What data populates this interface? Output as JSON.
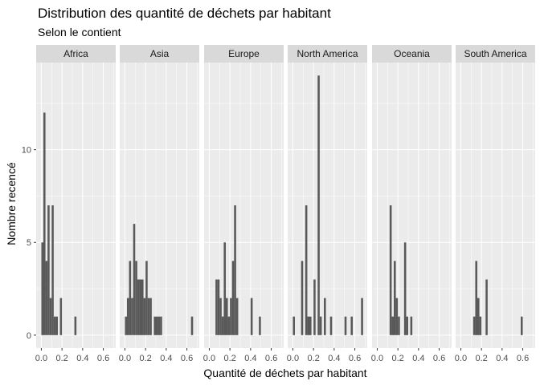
{
  "chart_data": {
    "type": "bar",
    "subtype": "faceted-histogram",
    "title": "Distribution des quantité de déchets par habitant",
    "subtitle": "Selon le contient",
    "xlabel": "Quantité de déchets par habitant",
    "ylabel": "Nombre recencé",
    "xlim": [
      -0.05,
      0.72
    ],
    "ylim": [
      -0.7,
      14.7
    ],
    "x_ticks": [
      0.0,
      0.2,
      0.4,
      0.6
    ],
    "x_tick_labels": [
      "0.0",
      "0.2",
      "0.4",
      "0.6"
    ],
    "y_ticks": [
      0,
      5,
      10
    ],
    "y_tick_labels": [
      "0",
      "5",
      "10"
    ],
    "bin_width": 0.02,
    "grid": true,
    "colors": {
      "bar": "#595959",
      "panel_bg": "#ebebeb",
      "grid": "#ffffff",
      "strip_bg": "#d9d9d9"
    },
    "facets": [
      {
        "name": "Africa",
        "bins": [
          {
            "x": 0.01,
            "count": 5
          },
          {
            "x": 0.03,
            "count": 12
          },
          {
            "x": 0.05,
            "count": 4
          },
          {
            "x": 0.07,
            "count": 7
          },
          {
            "x": 0.09,
            "count": 2
          },
          {
            "x": 0.11,
            "count": 7
          },
          {
            "x": 0.13,
            "count": 1
          },
          {
            "x": 0.15,
            "count": 1
          },
          {
            "x": 0.19,
            "count": 2
          },
          {
            "x": 0.33,
            "count": 1
          }
        ]
      },
      {
        "name": "Asia",
        "bins": [
          {
            "x": 0.01,
            "count": 1
          },
          {
            "x": 0.03,
            "count": 2
          },
          {
            "x": 0.05,
            "count": 4
          },
          {
            "x": 0.07,
            "count": 2
          },
          {
            "x": 0.09,
            "count": 6
          },
          {
            "x": 0.11,
            "count": 4
          },
          {
            "x": 0.13,
            "count": 3
          },
          {
            "x": 0.15,
            "count": 3
          },
          {
            "x": 0.17,
            "count": 3
          },
          {
            "x": 0.19,
            "count": 2
          },
          {
            "x": 0.21,
            "count": 4
          },
          {
            "x": 0.23,
            "count": 2
          },
          {
            "x": 0.25,
            "count": 2
          },
          {
            "x": 0.29,
            "count": 1
          },
          {
            "x": 0.31,
            "count": 1
          },
          {
            "x": 0.33,
            "count": 1
          },
          {
            "x": 0.35,
            "count": 1
          },
          {
            "x": 0.65,
            "count": 1
          }
        ]
      },
      {
        "name": "Europe",
        "bins": [
          {
            "x": 0.07,
            "count": 3
          },
          {
            "x": 0.09,
            "count": 3
          },
          {
            "x": 0.11,
            "count": 2
          },
          {
            "x": 0.13,
            "count": 1
          },
          {
            "x": 0.15,
            "count": 5
          },
          {
            "x": 0.17,
            "count": 2
          },
          {
            "x": 0.19,
            "count": 1
          },
          {
            "x": 0.21,
            "count": 2
          },
          {
            "x": 0.23,
            "count": 4
          },
          {
            "x": 0.25,
            "count": 7
          },
          {
            "x": 0.27,
            "count": 2
          },
          {
            "x": 0.41,
            "count": 2
          },
          {
            "x": 0.49,
            "count": 1
          }
        ]
      },
      {
        "name": "North America",
        "bins": [
          {
            "x": 0.01,
            "count": 1
          },
          {
            "x": 0.09,
            "count": 4
          },
          {
            "x": 0.13,
            "count": 7
          },
          {
            "x": 0.15,
            "count": 1
          },
          {
            "x": 0.17,
            "count": 1
          },
          {
            "x": 0.21,
            "count": 3
          },
          {
            "x": 0.25,
            "count": 14
          },
          {
            "x": 0.27,
            "count": 1
          },
          {
            "x": 0.31,
            "count": 2
          },
          {
            "x": 0.37,
            "count": 1
          },
          {
            "x": 0.51,
            "count": 1
          },
          {
            "x": 0.57,
            "count": 1
          },
          {
            "x": 0.67,
            "count": 2
          }
        ]
      },
      {
        "name": "Oceania",
        "bins": [
          {
            "x": 0.13,
            "count": 7
          },
          {
            "x": 0.15,
            "count": 1
          },
          {
            "x": 0.17,
            "count": 4
          },
          {
            "x": 0.19,
            "count": 2
          },
          {
            "x": 0.21,
            "count": 1
          },
          {
            "x": 0.27,
            "count": 5
          },
          {
            "x": 0.29,
            "count": 1
          },
          {
            "x": 0.33,
            "count": 1
          }
        ]
      },
      {
        "name": "South America",
        "bins": [
          {
            "x": 0.13,
            "count": 1
          },
          {
            "x": 0.15,
            "count": 4
          },
          {
            "x": 0.17,
            "count": 2
          },
          {
            "x": 0.19,
            "count": 1
          },
          {
            "x": 0.25,
            "count": 3
          },
          {
            "x": 0.59,
            "count": 1
          }
        ]
      }
    ]
  }
}
